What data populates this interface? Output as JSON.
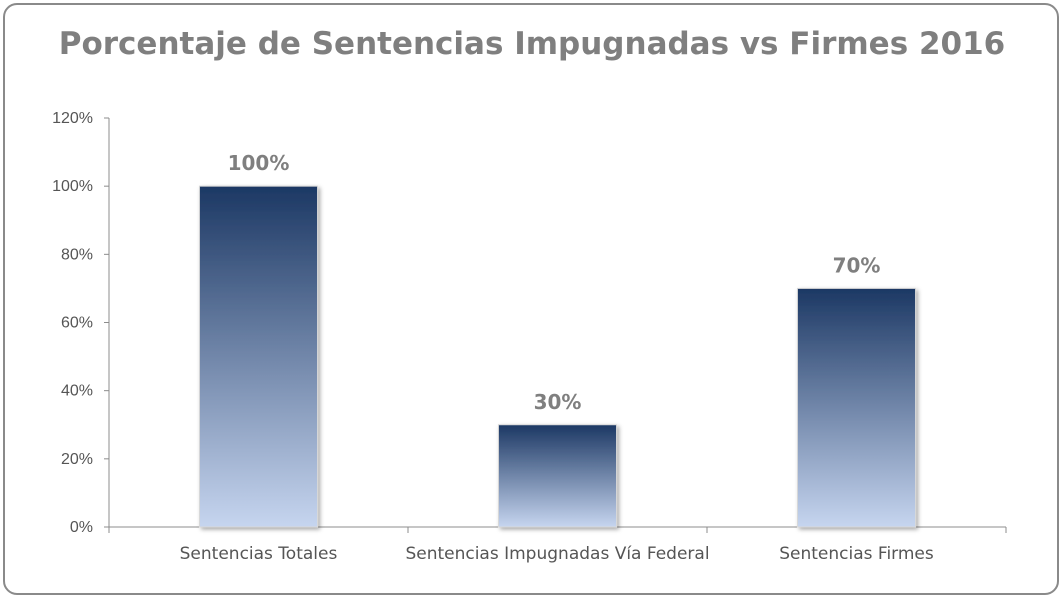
{
  "chart_data": {
    "type": "bar",
    "title": "Porcentaje de Sentencias Impugnadas vs Firmes 2016",
    "categories": [
      "Sentencias Totales",
      "Sentencias Impugnadas Vía Federal",
      "Sentencias Firmes"
    ],
    "values": [
      100,
      30,
      70
    ],
    "data_labels": [
      "100%",
      "30%",
      "70%"
    ],
    "yticks": [
      "0%",
      "20%",
      "40%",
      "60%",
      "80%",
      "100%",
      "120%"
    ],
    "ylim": [
      0,
      120
    ],
    "grid": false,
    "legend": "none",
    "xlabel": "",
    "ylabel": "",
    "colors": {
      "bar_top": "#1c3864",
      "bar_bottom": "#c6d5ef",
      "text": "#7f7f7f",
      "axis": "#8c8c8c"
    }
  }
}
